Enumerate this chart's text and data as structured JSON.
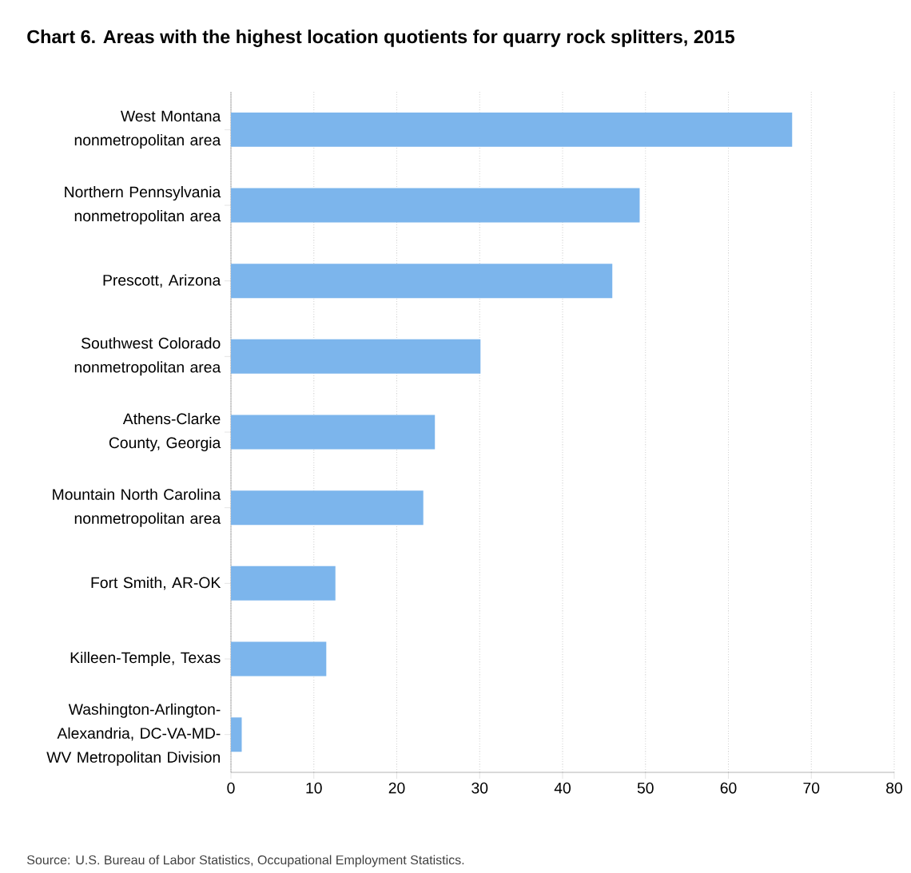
{
  "chart_data": {
    "type": "bar",
    "orientation": "horizontal",
    "title": "Chart 6. Areas with the highest location quotients for quarry rock splitters, 2015",
    "categories": [
      "West Montana nonmetropolitan area",
      "Northern Pennsylvania nonmetropolitan area",
      "Prescott, Arizona",
      "Southwest Colorado nonmetropolitan area",
      "Athens-Clarke County, Georgia",
      "Mountain North Carolina nonmetropolitan area",
      "Fort Smith, AR-OK",
      "Killeen-Temple, Texas",
      "Washington-Arlington-Alexandria, DC-VA-MD-WV Metropolitan Division"
    ],
    "values": [
      67.7,
      49.3,
      46.0,
      30.1,
      24.6,
      23.2,
      12.6,
      11.5,
      1.3
    ],
    "color": "#7cb5ec",
    "xlim": [
      0,
      80
    ],
    "xticks": [
      0,
      10,
      20,
      30,
      40,
      50,
      60,
      70,
      80
    ],
    "grid": "x",
    "annotations": [
      "Source: U.S. Bureau of Labor Statistics, Occupational Employment Statistics."
    ]
  }
}
